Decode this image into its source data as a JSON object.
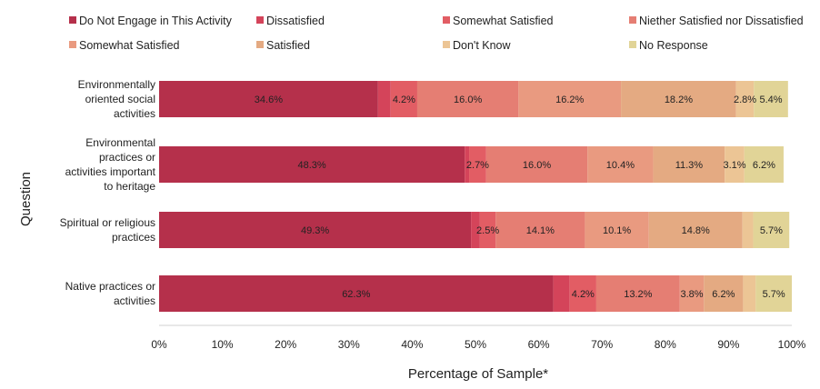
{
  "chart_data": {
    "type": "bar",
    "orientation": "horizontal",
    "stacked": true,
    "xlabel": "Percentage of Sample*",
    "ylabel": "Question",
    "xlim": [
      0,
      100
    ],
    "xticks": [
      "0%",
      "10%",
      "20%",
      "30%",
      "40%",
      "50%",
      "60%",
      "70%",
      "80%",
      "90%",
      "100%"
    ],
    "grid": false,
    "legend_position": "top",
    "categories": [
      "Environmentally oriented social activities",
      "Environmental practices or activities important to heritage",
      "Spiritual or religious practices",
      "Native practices or activities"
    ],
    "category_lines": [
      [
        "Environmentally",
        "oriented social",
        "activities"
      ],
      [
        "Environmental",
        "practices or",
        "activities important",
        "to heritage"
      ],
      [
        "Spiritual or religious",
        "practices"
      ],
      [
        "Native practices or",
        "activities"
      ]
    ],
    "series": [
      {
        "name": "Do Not Engage in This Activity",
        "color": "#b5304b",
        "values": [
          34.6,
          48.3,
          49.3,
          62.3
        ],
        "labels": [
          "34.6%",
          "48.3%",
          "49.3%",
          "62.3%"
        ]
      },
      {
        "name": "Dissatisfied",
        "color": "#d4445a",
        "values": [
          2.0,
          0.7,
          1.4,
          2.6
        ],
        "labels": [
          "",
          "",
          "",
          ""
        ]
      },
      {
        "name": "Somewhat Satisfied",
        "color": "#e25d64",
        "values": [
          4.2,
          2.7,
          2.5,
          4.2
        ],
        "labels": [
          "4.2%",
          "2.7%",
          "2.5%",
          "4.2%"
        ]
      },
      {
        "name": "Niether Satisfied nor Dissatisfied",
        "color": "#e57e73",
        "values": [
          16.0,
          16.0,
          14.1,
          13.2
        ],
        "labels": [
          "16.0%",
          "16.0%",
          "14.1%",
          "13.2%"
        ]
      },
      {
        "name": "Somewhat Satisfied",
        "color": "#e99a80",
        "values": [
          16.2,
          10.4,
          10.1,
          3.8
        ],
        "labels": [
          "16.2%",
          "10.4%",
          "10.1%",
          "3.8%"
        ]
      },
      {
        "name": "Satisfied",
        "color": "#e4aa82",
        "values": [
          18.2,
          11.3,
          14.8,
          6.2
        ],
        "labels": [
          "18.2%",
          "11.3%",
          "14.8%",
          "6.2%"
        ]
      },
      {
        "name": "Don't Know",
        "color": "#ecc595",
        "values": [
          2.8,
          3.1,
          1.7,
          2.0
        ],
        "labels": [
          "2.8%",
          "3.1%",
          "",
          ""
        ]
      },
      {
        "name": "No Response",
        "color": "#e1d497",
        "values": [
          5.4,
          6.2,
          5.7,
          5.7
        ],
        "labels": [
          "5.4%",
          "6.2%",
          "5.7%",
          "5.7%"
        ]
      }
    ]
  }
}
